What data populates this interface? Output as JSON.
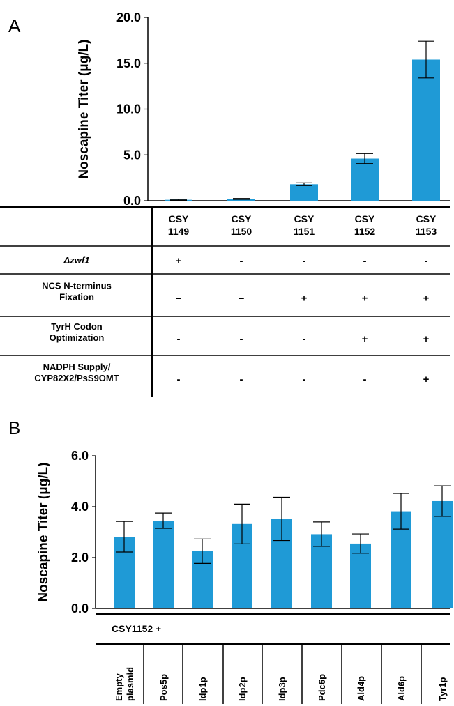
{
  "panels": {
    "a_label": "A",
    "b_label": "B"
  },
  "colors": {
    "bar": "#1f9ad6",
    "line": "#000000"
  },
  "chart_data": [
    {
      "type": "bar",
      "panel": "A",
      "ylabel": "Noscapine Titer (μg/L)",
      "ylim": [
        0,
        20
      ],
      "yticks": [
        "0.0",
        "5.0",
        "10.0",
        "15.0",
        "20.0"
      ],
      "ytick_values": [
        0,
        5,
        10,
        15,
        20
      ],
      "categories": [
        "CSY 1149",
        "CSY 1150",
        "CSY 1151",
        "CSY 1152",
        "CSY 1153"
      ],
      "values": [
        0.1,
        0.2,
        1.8,
        4.6,
        15.4
      ],
      "errors": [
        0.05,
        0.05,
        0.15,
        0.55,
        2.0
      ],
      "grid": false
    },
    {
      "type": "bar",
      "panel": "B",
      "ylabel": "Noscapine Titer (μg/L)",
      "ylim": [
        0,
        6
      ],
      "yticks": [
        "0.0",
        "2.0",
        "4.0",
        "6.0"
      ],
      "ytick_values": [
        0,
        2,
        4,
        6
      ],
      "categories": [
        "Empty plasmid",
        "Pos5p",
        "Idp1p",
        "Idp2p",
        "Idp3p",
        "Pdc6p",
        "Ald4p",
        "Ald6p",
        "Tyr1p"
      ],
      "values": [
        2.82,
        3.45,
        2.25,
        3.32,
        3.52,
        2.92,
        2.55,
        3.82,
        4.22
      ],
      "errors": [
        0.6,
        0.3,
        0.48,
        0.78,
        0.85,
        0.48,
        0.38,
        0.7,
        0.6
      ],
      "grid": false
    }
  ],
  "table_a": {
    "strains": [
      [
        "CSY",
        "1149"
      ],
      [
        "CSY",
        "1150"
      ],
      [
        "CSY",
        "1151"
      ],
      [
        "CSY",
        "1152"
      ],
      [
        "CSY",
        "1153"
      ]
    ],
    "rows": [
      {
        "label": [
          "Δzwf1"
        ],
        "italic": true,
        "cells": [
          "+",
          "-",
          "-",
          "-",
          "-"
        ]
      },
      {
        "label": [
          "NCS N-terminus",
          "Fixation"
        ],
        "italic": false,
        "cells": [
          "–",
          "–",
          "+",
          "+",
          "+"
        ]
      },
      {
        "label": [
          "TyrH Codon",
          "Optimization"
        ],
        "italic": false,
        "cells": [
          "-",
          "-",
          "-",
          "+",
          "+"
        ]
      },
      {
        "label": [
          "NADPH Supply/",
          "CYP82X2/PsS9OMT"
        ],
        "italic": false,
        "cells": [
          "-",
          "-",
          "-",
          "-",
          "+"
        ]
      }
    ]
  },
  "table_b": {
    "header": "CSY1152 +",
    "labels": [
      [
        "Empty",
        "plasmid"
      ],
      [
        "Pos5p"
      ],
      [
        "Idp1p"
      ],
      [
        "Idp2p"
      ],
      [
        "Idp3p"
      ],
      [
        "Pdc6p"
      ],
      [
        "Ald4p"
      ],
      [
        "Ald6p"
      ],
      [
        "Tyr1p"
      ]
    ]
  }
}
